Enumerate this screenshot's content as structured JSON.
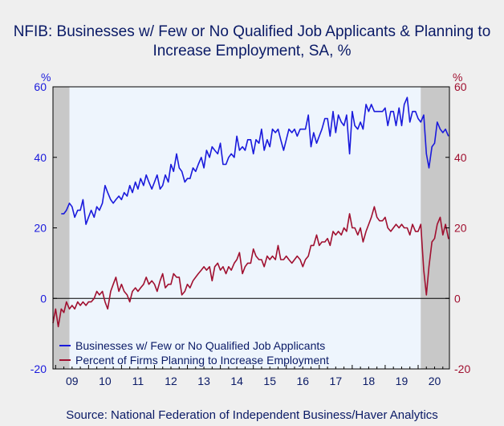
{
  "title": "NFIB: Businesses w/ Few or No Qualified Job Applicants & Planning to Increase Employment, SA, %",
  "source": "Source:  National Federation of Independent Business/Haver Analytics",
  "colors": {
    "series1": "#1a1adc",
    "series2": "#a01030",
    "plot_bg": "#eef5fd",
    "recession": "#c8c8c8"
  },
  "chart_data": {
    "type": "line",
    "title": "NFIB: Businesses w/ Few or No Qualified Job Applicants & Planning to Increase Employment, SA, %",
    "ylabel_left": "%",
    "ylabel_right": "%",
    "ylim": [
      -20,
      60
    ],
    "y_ticks": [
      -20,
      0,
      20,
      40,
      60
    ],
    "x_range": [
      2008.92,
      2020.95
    ],
    "x_ticks": [
      "09",
      "10",
      "11",
      "12",
      "13",
      "14",
      "15",
      "16",
      "17",
      "18",
      "19",
      "20"
    ],
    "recessions": [
      [
        2008.92,
        2009.42
      ],
      [
        2020.08,
        2020.95
      ]
    ],
    "grid": false,
    "legend_position": "bottom-left",
    "series": [
      {
        "name": "Businesses w/ Few or No Qualified Job Applicants",
        "color": "#1a1adc",
        "points": [
          [
            2009.17,
            24
          ],
          [
            2009.25,
            24
          ],
          [
            2009.33,
            25
          ],
          [
            2009.42,
            27
          ],
          [
            2009.5,
            26
          ],
          [
            2009.58,
            23
          ],
          [
            2009.67,
            25
          ],
          [
            2009.75,
            25
          ],
          [
            2009.83,
            28
          ],
          [
            2009.92,
            21
          ],
          [
            2010.0,
            23
          ],
          [
            2010.08,
            25
          ],
          [
            2010.17,
            23
          ],
          [
            2010.25,
            26
          ],
          [
            2010.33,
            25
          ],
          [
            2010.42,
            27
          ],
          [
            2010.5,
            32
          ],
          [
            2010.58,
            30
          ],
          [
            2010.67,
            28
          ],
          [
            2010.75,
            27
          ],
          [
            2010.83,
            28
          ],
          [
            2010.92,
            29
          ],
          [
            2011.0,
            28
          ],
          [
            2011.08,
            30
          ],
          [
            2011.17,
            29
          ],
          [
            2011.25,
            32
          ],
          [
            2011.33,
            30
          ],
          [
            2011.42,
            33
          ],
          [
            2011.5,
            31
          ],
          [
            2011.58,
            34
          ],
          [
            2011.67,
            32
          ],
          [
            2011.75,
            35
          ],
          [
            2011.83,
            33
          ],
          [
            2011.92,
            31
          ],
          [
            2012.0,
            33
          ],
          [
            2012.08,
            35
          ],
          [
            2012.17,
            31
          ],
          [
            2012.25,
            32
          ],
          [
            2012.33,
            35
          ],
          [
            2012.42,
            33
          ],
          [
            2012.5,
            38
          ],
          [
            2012.58,
            36
          ],
          [
            2012.67,
            41
          ],
          [
            2012.75,
            37
          ],
          [
            2012.83,
            36
          ],
          [
            2012.92,
            33
          ],
          [
            2013.0,
            34
          ],
          [
            2013.08,
            34
          ],
          [
            2013.17,
            37
          ],
          [
            2013.25,
            36
          ],
          [
            2013.33,
            38
          ],
          [
            2013.42,
            40
          ],
          [
            2013.5,
            37
          ],
          [
            2013.58,
            42
          ],
          [
            2013.67,
            40
          ],
          [
            2013.75,
            43
          ],
          [
            2013.83,
            42
          ],
          [
            2013.92,
            41
          ],
          [
            2014.0,
            44
          ],
          [
            2014.08,
            38
          ],
          [
            2014.17,
            38
          ],
          [
            2014.25,
            40
          ],
          [
            2014.33,
            41
          ],
          [
            2014.42,
            40
          ],
          [
            2014.5,
            46
          ],
          [
            2014.58,
            42
          ],
          [
            2014.67,
            43
          ],
          [
            2014.75,
            42
          ],
          [
            2014.83,
            45
          ],
          [
            2014.92,
            45
          ],
          [
            2015.0,
            41
          ],
          [
            2015.08,
            45
          ],
          [
            2015.17,
            44
          ],
          [
            2015.25,
            48
          ],
          [
            2015.33,
            42
          ],
          [
            2015.42,
            45
          ],
          [
            2015.5,
            43
          ],
          [
            2015.58,
            48
          ],
          [
            2015.67,
            47
          ],
          [
            2015.75,
            48
          ],
          [
            2015.83,
            45
          ],
          [
            2015.92,
            42
          ],
          [
            2016.0,
            45
          ],
          [
            2016.08,
            48
          ],
          [
            2016.17,
            47
          ],
          [
            2016.25,
            48
          ],
          [
            2016.33,
            46
          ],
          [
            2016.42,
            48
          ],
          [
            2016.5,
            48
          ],
          [
            2016.58,
            48
          ],
          [
            2016.67,
            52
          ],
          [
            2016.75,
            43
          ],
          [
            2016.83,
            47
          ],
          [
            2016.92,
            44
          ],
          [
            2017.0,
            46
          ],
          [
            2017.08,
            48
          ],
          [
            2017.17,
            51
          ],
          [
            2017.25,
            51
          ],
          [
            2017.33,
            46
          ],
          [
            2017.42,
            53
          ],
          [
            2017.5,
            47
          ],
          [
            2017.58,
            52
          ],
          [
            2017.67,
            50
          ],
          [
            2017.75,
            49
          ],
          [
            2017.83,
            52
          ],
          [
            2017.92,
            41
          ],
          [
            2018.0,
            53
          ],
          [
            2018.08,
            49
          ],
          [
            2018.17,
            48
          ],
          [
            2018.25,
            50
          ],
          [
            2018.33,
            48
          ],
          [
            2018.42,
            55
          ],
          [
            2018.5,
            53
          ],
          [
            2018.58,
            55
          ],
          [
            2018.67,
            53
          ],
          [
            2018.75,
            53
          ],
          [
            2018.83,
            53
          ],
          [
            2018.92,
            53
          ],
          [
            2019.0,
            54
          ],
          [
            2019.08,
            49
          ],
          [
            2019.17,
            53
          ],
          [
            2019.25,
            53
          ],
          [
            2019.33,
            49
          ],
          [
            2019.42,
            54
          ],
          [
            2019.5,
            49
          ],
          [
            2019.58,
            55
          ],
          [
            2019.67,
            57
          ],
          [
            2019.75,
            50
          ],
          [
            2019.83,
            53
          ],
          [
            2019.92,
            53
          ],
          [
            2020.0,
            51
          ],
          [
            2020.08,
            50
          ],
          [
            2020.17,
            52
          ],
          [
            2020.25,
            41
          ],
          [
            2020.33,
            37
          ],
          [
            2020.42,
            43
          ],
          [
            2020.5,
            44
          ],
          [
            2020.58,
            50
          ],
          [
            2020.67,
            48
          ],
          [
            2020.75,
            47
          ],
          [
            2020.83,
            48
          ],
          [
            2020.92,
            46
          ]
        ]
      },
      {
        "name": "Percent of Firms Planning to Increase Employment",
        "color": "#a01030",
        "points": [
          [
            2008.92,
            -7
          ],
          [
            2009.0,
            -3
          ],
          [
            2009.08,
            -8
          ],
          [
            2009.17,
            -3
          ],
          [
            2009.25,
            -4
          ],
          [
            2009.33,
            -1
          ],
          [
            2009.42,
            -3
          ],
          [
            2009.5,
            -2
          ],
          [
            2009.58,
            -3
          ],
          [
            2009.67,
            -1
          ],
          [
            2009.75,
            -2
          ],
          [
            2009.83,
            -1
          ],
          [
            2009.92,
            -2
          ],
          [
            2010.0,
            -1
          ],
          [
            2010.08,
            -1
          ],
          [
            2010.17,
            0
          ],
          [
            2010.25,
            2
          ],
          [
            2010.33,
            1
          ],
          [
            2010.42,
            2
          ],
          [
            2010.5,
            -1
          ],
          [
            2010.58,
            -3
          ],
          [
            2010.67,
            2
          ],
          [
            2010.75,
            4
          ],
          [
            2010.83,
            6
          ],
          [
            2010.92,
            2
          ],
          [
            2011.0,
            4
          ],
          [
            2011.08,
            2
          ],
          [
            2011.17,
            1
          ],
          [
            2011.25,
            -1
          ],
          [
            2011.33,
            2
          ],
          [
            2011.42,
            3
          ],
          [
            2011.5,
            2
          ],
          [
            2011.58,
            3
          ],
          [
            2011.67,
            4
          ],
          [
            2011.75,
            6
          ],
          [
            2011.83,
            4
          ],
          [
            2011.92,
            5
          ],
          [
            2012.0,
            4
          ],
          [
            2012.08,
            2
          ],
          [
            2012.17,
            5
          ],
          [
            2012.25,
            7
          ],
          [
            2012.33,
            3
          ],
          [
            2012.42,
            4
          ],
          [
            2012.5,
            4
          ],
          [
            2012.58,
            7
          ],
          [
            2012.67,
            6
          ],
          [
            2012.75,
            6
          ],
          [
            2012.83,
            1
          ],
          [
            2012.92,
            2
          ],
          [
            2013.0,
            4
          ],
          [
            2013.08,
            3
          ],
          [
            2013.17,
            5
          ],
          [
            2013.25,
            6
          ],
          [
            2013.33,
            7
          ],
          [
            2013.42,
            8
          ],
          [
            2013.5,
            9
          ],
          [
            2013.58,
            8
          ],
          [
            2013.67,
            9
          ],
          [
            2013.75,
            5
          ],
          [
            2013.83,
            9
          ],
          [
            2013.92,
            10
          ],
          [
            2014.0,
            8
          ],
          [
            2014.08,
            9
          ],
          [
            2014.17,
            7
          ],
          [
            2014.25,
            9
          ],
          [
            2014.33,
            8
          ],
          [
            2014.42,
            10
          ],
          [
            2014.5,
            11
          ],
          [
            2014.58,
            13
          ],
          [
            2014.67,
            7
          ],
          [
            2014.75,
            9
          ],
          [
            2014.83,
            10
          ],
          [
            2014.92,
            10
          ],
          [
            2015.0,
            14
          ],
          [
            2015.08,
            12
          ],
          [
            2015.17,
            11
          ],
          [
            2015.25,
            11
          ],
          [
            2015.33,
            9
          ],
          [
            2015.42,
            12
          ],
          [
            2015.5,
            11
          ],
          [
            2015.58,
            12
          ],
          [
            2015.67,
            11
          ],
          [
            2015.75,
            15
          ],
          [
            2015.83,
            11
          ],
          [
            2015.92,
            11
          ],
          [
            2016.0,
            12
          ],
          [
            2016.08,
            11
          ],
          [
            2016.17,
            10
          ],
          [
            2016.25,
            11
          ],
          [
            2016.33,
            12
          ],
          [
            2016.42,
            11
          ],
          [
            2016.5,
            9
          ],
          [
            2016.58,
            11
          ],
          [
            2016.67,
            12
          ],
          [
            2016.75,
            15
          ],
          [
            2016.83,
            15
          ],
          [
            2016.92,
            18
          ],
          [
            2017.0,
            15
          ],
          [
            2017.08,
            16
          ],
          [
            2017.17,
            16
          ],
          [
            2017.25,
            17
          ],
          [
            2017.33,
            15
          ],
          [
            2017.42,
            19
          ],
          [
            2017.5,
            18
          ],
          [
            2017.58,
            19
          ],
          [
            2017.67,
            18
          ],
          [
            2017.75,
            20
          ],
          [
            2017.83,
            19
          ],
          [
            2017.92,
            24
          ],
          [
            2018.0,
            20
          ],
          [
            2018.08,
            20
          ],
          [
            2018.17,
            18
          ],
          [
            2018.25,
            20
          ],
          [
            2018.33,
            16
          ],
          [
            2018.42,
            19
          ],
          [
            2018.5,
            21
          ],
          [
            2018.58,
            23
          ],
          [
            2018.67,
            26
          ],
          [
            2018.75,
            23
          ],
          [
            2018.83,
            22
          ],
          [
            2018.92,
            22
          ],
          [
            2019.0,
            23
          ],
          [
            2019.08,
            20
          ],
          [
            2019.17,
            19
          ],
          [
            2019.25,
            20
          ],
          [
            2019.33,
            21
          ],
          [
            2019.42,
            20
          ],
          [
            2019.5,
            21
          ],
          [
            2019.58,
            20
          ],
          [
            2019.67,
            20
          ],
          [
            2019.75,
            18
          ],
          [
            2019.83,
            21
          ],
          [
            2019.92,
            19
          ],
          [
            2020.0,
            19
          ],
          [
            2020.08,
            21
          ],
          [
            2020.17,
            8
          ],
          [
            2020.25,
            1
          ],
          [
            2020.33,
            9
          ],
          [
            2020.42,
            16
          ],
          [
            2020.5,
            17
          ],
          [
            2020.58,
            21
          ],
          [
            2020.67,
            23
          ],
          [
            2020.75,
            18
          ],
          [
            2020.83,
            21
          ],
          [
            2020.92,
            17
          ],
          [
            2020.95,
            17
          ]
        ]
      }
    ]
  }
}
